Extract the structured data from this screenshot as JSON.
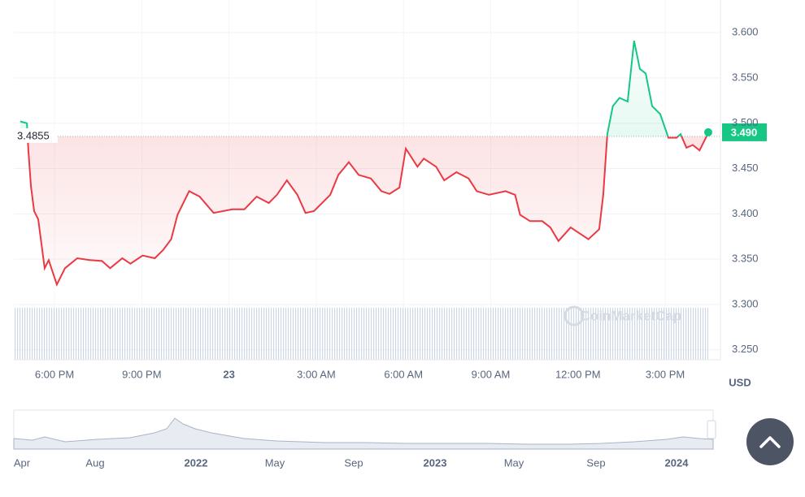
{
  "chart_data": {
    "type": "line",
    "x": [
      16.82,
      17.05,
      17.1,
      17.19,
      17.3,
      17.44,
      17.66,
      17.8,
      18.08,
      18.36,
      18.78,
      19.21,
      19.63,
      19.91,
      20.33,
      20.61,
      21.03,
      21.45,
      21.73,
      22.01,
      22.23,
      22.63,
      22.99,
      23.47,
      24.11,
      24.53,
      24.95,
      25.37,
      25.65,
      25.99,
      26.35,
      26.63,
      26.92,
      27.48,
      27.76,
      28.12,
      28.46,
      28.88,
      29.24,
      29.52,
      29.86,
      30.08,
      30.48,
      30.7,
      31.12,
      31.4,
      31.82,
      32.24,
      32.52,
      32.94,
      33.51,
      33.84,
      34.01,
      34.35,
      34.77,
      35.05,
      35.33,
      35.75,
      36.08,
      36.36,
      36.73,
      36.87,
      37.01,
      37.2,
      37.43,
      37.71,
      37.93,
      38.13,
      38.33,
      38.55,
      38.83,
      39.11,
      39.39,
      39.53,
      39.73,
      39.95,
      40.18,
      40.4,
      40.48
    ],
    "series": [
      {
        "color": "#ea3943",
        "up_color": "#16c784",
        "values": [
          3.502,
          3.5,
          3.47,
          3.43,
          3.403,
          3.394,
          3.34,
          3.349,
          3.322,
          3.34,
          3.351,
          3.349,
          3.348,
          3.34,
          3.351,
          3.345,
          3.354,
          3.351,
          3.36,
          3.372,
          3.399,
          3.425,
          3.419,
          3.401,
          3.405,
          3.405,
          3.419,
          3.412,
          3.421,
          3.437,
          3.421,
          3.401,
          3.403,
          3.421,
          3.443,
          3.457,
          3.443,
          3.439,
          3.425,
          3.422,
          3.429,
          3.472,
          3.452,
          3.461,
          3.452,
          3.437,
          3.446,
          3.439,
          3.425,
          3.421,
          3.425,
          3.421,
          3.399,
          3.392,
          3.392,
          3.385,
          3.37,
          3.385,
          3.378,
          3.372,
          3.383,
          3.421,
          3.488,
          3.519,
          3.528,
          3.524,
          3.591,
          3.56,
          3.555,
          3.519,
          3.51,
          3.484,
          3.484,
          3.488,
          3.473,
          3.476,
          3.47,
          3.484,
          3.49
        ]
      }
    ],
    "baseline": 3.4855,
    "last_price": {
      "value": 3.49,
      "label": "3.490"
    },
    "xlim": [
      16.6,
      40.9
    ],
    "xticks": [
      {
        "value": 18,
        "label": "6:00 PM"
      },
      {
        "value": 21,
        "label": "9:00 PM"
      },
      {
        "value": 24,
        "label": "23"
      },
      {
        "value": 27,
        "label": "3:00 AM"
      },
      {
        "value": 30,
        "label": "6:00 AM"
      },
      {
        "value": 33,
        "label": "9:00 AM"
      },
      {
        "value": 36,
        "label": "12:00 PM"
      },
      {
        "value": 39,
        "label": "3:00 PM"
      }
    ],
    "ylim": [
      3.239,
      3.636
    ],
    "yticks": [
      {
        "value": 3.25,
        "label": "3.250"
      },
      {
        "value": 3.3,
        "label": "3.300"
      },
      {
        "value": 3.35,
        "label": "3.350"
      },
      {
        "value": 3.4,
        "label": "3.400"
      },
      {
        "value": 3.45,
        "label": "3.450"
      },
      {
        "value": 3.5,
        "label": "3.500"
      },
      {
        "value": 3.55,
        "label": "3.550"
      },
      {
        "value": 3.6,
        "label": "3.600"
      }
    ],
    "y_label": "USD",
    "grid": true,
    "watermark": "CoinMarketCap"
  },
  "navigator": {
    "labels": [
      "Apr",
      "Aug",
      "2022",
      "May",
      "Sep",
      "2023",
      "May",
      "Sep",
      "2024"
    ]
  }
}
